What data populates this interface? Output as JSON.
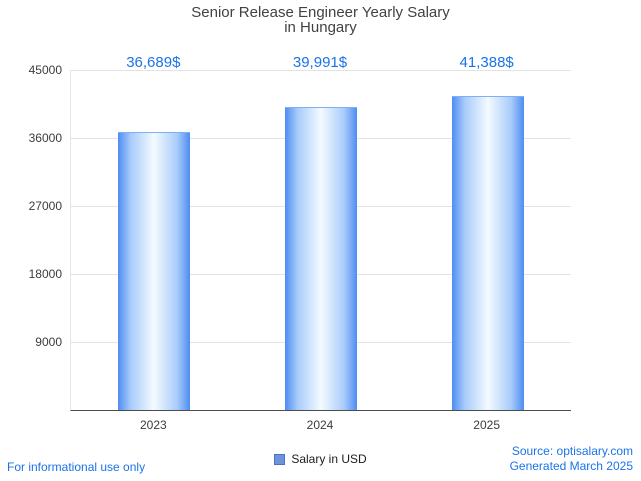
{
  "title": {
    "line1": "Senior Release Engineer Yearly Salary",
    "line2": "in Hungary"
  },
  "chart_data": {
    "type": "bar",
    "title": "Senior Release Engineer Yearly Salary in Hungary",
    "categories": [
      "2023",
      "2024",
      "2025"
    ],
    "values": [
      36689,
      39991,
      41388
    ],
    "value_labels": [
      "36,689$",
      "39,991$",
      "41,388$"
    ],
    "xlabel": "",
    "ylabel": "",
    "ylim": [
      0,
      45000
    ],
    "yticks": [
      9000,
      18000,
      27000,
      36000,
      45000
    ],
    "grid": true,
    "legend": [
      "Salary in USD"
    ],
    "legend_position": "bottom"
  },
  "legend": {
    "label": "Salary in USD"
  },
  "footer": {
    "left": "For informational use only",
    "source": "Source: optisalary.com",
    "generated": "Generated March 2025"
  },
  "colors": {
    "accent_blue": "#1a73e8",
    "bar_edge": "#4e8df2",
    "bar_center": "#f4faff",
    "grid": "#e3e3e3",
    "axis": "#4d4d4d",
    "title_text": "#424242"
  }
}
